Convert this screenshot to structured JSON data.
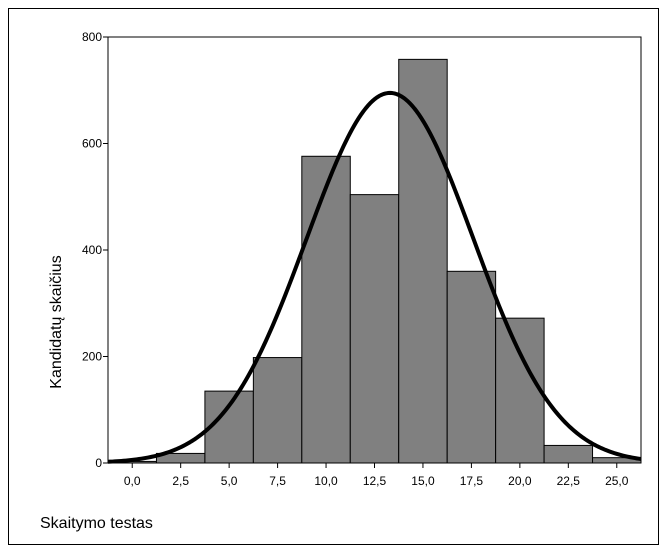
{
  "chart_data": {
    "type": "bar",
    "xlabel": "Skaitymo testas",
    "ylabel": "Kandidatų skaičius",
    "x_ticks": [
      "0,0",
      "2,5",
      "5,0",
      "7,5",
      "10,0",
      "12,5",
      "15,0",
      "17,5",
      "20,0",
      "22,5",
      "25,0"
    ],
    "x_tick_values": [
      0,
      2.5,
      5,
      7.5,
      10,
      12.5,
      15,
      17.5,
      20,
      22.5,
      25
    ],
    "y_ticks": [
      "0",
      "200",
      "400",
      "600",
      "800"
    ],
    "y_tick_values": [
      0,
      200,
      400,
      600,
      800
    ],
    "xlim": [
      -1.25,
      26.25
    ],
    "ylim": [
      0,
      800
    ],
    "bars": [
      {
        "x0": -1.25,
        "x1": 1.25,
        "value": 3
      },
      {
        "x0": 1.25,
        "x1": 3.75,
        "value": 18
      },
      {
        "x0": 3.75,
        "x1": 6.25,
        "value": 135
      },
      {
        "x0": 6.25,
        "x1": 8.75,
        "value": 198
      },
      {
        "x0": 8.75,
        "x1": 11.25,
        "value": 576
      },
      {
        "x0": 11.25,
        "x1": 13.75,
        "value": 504
      },
      {
        "x0": 13.75,
        "x1": 16.25,
        "value": 758
      },
      {
        "x0": 16.25,
        "x1": 18.75,
        "value": 360
      },
      {
        "x0": 18.75,
        "x1": 21.25,
        "value": 272
      },
      {
        "x0": 21.25,
        "x1": 23.75,
        "value": 33
      },
      {
        "x0": 23.75,
        "x1": 26.25,
        "value": 10
      }
    ],
    "normal_curve": {
      "peak_x": 13.3,
      "peak_y": 695,
      "sd": 4.3
    },
    "bar_color": "#808080",
    "curve_color": "#000000",
    "grid": false
  }
}
